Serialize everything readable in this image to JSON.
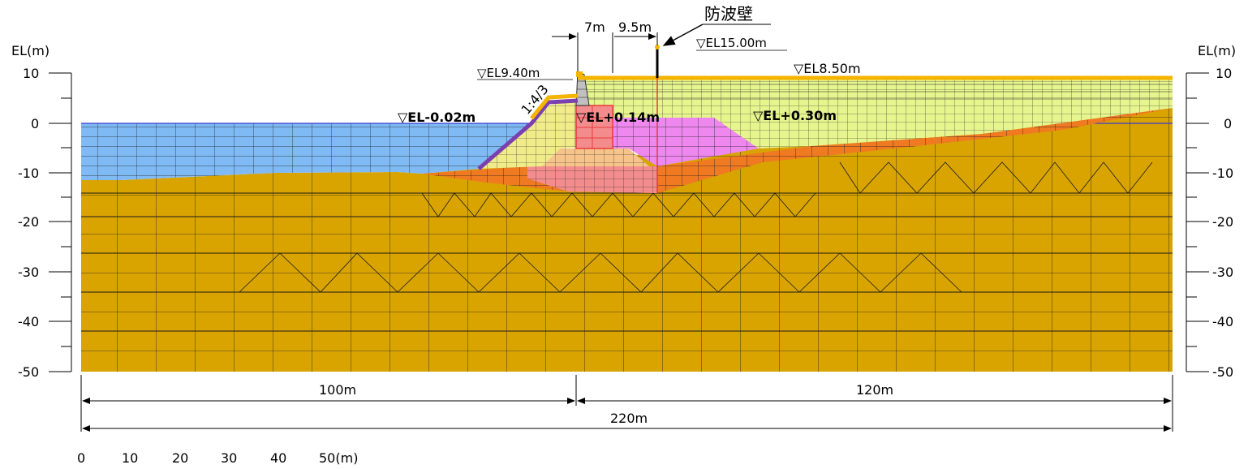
{
  "axis": {
    "left_unit": "EL(m)",
    "right_unit": "EL(m)",
    "ticks": [
      "10",
      "0",
      "-10",
      "-20",
      "-30",
      "-40",
      "-50"
    ]
  },
  "dimensions": {
    "left_width": "100m",
    "right_width": "120m",
    "total_width": "220m",
    "top_a": "7m",
    "top_b": "9.5m"
  },
  "levels": {
    "sea": "▽EL-0.02m",
    "caisson": "▽EL+0.14m",
    "land": "▽EL+0.30m",
    "crest": "▽EL9.40m",
    "ground": "▽EL8.50m",
    "wall_top": "▽EL15.00m"
  },
  "slope_label": "1:4/3",
  "wall_name": "防波壁",
  "scale_bar": [
    "0",
    "10",
    "20",
    "30",
    "40",
    "50(m)"
  ],
  "colors": {
    "sea": "#7fbaf5",
    "foundation": "#d9a400",
    "fill": "#e6f58e",
    "rubble": "#f0ec8a",
    "improved_soil": "#ee88ee",
    "sand_layer": "#f07a22",
    "pink": "#f38d8d",
    "caisson_outline": "#e83a3a",
    "revetment": "#7b3fb0",
    "cover": "#f5b400"
  }
}
